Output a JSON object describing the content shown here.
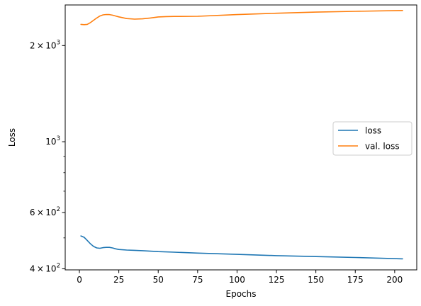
{
  "chart_data": {
    "type": "line",
    "title": "",
    "xlabel": "Epochs",
    "ylabel": "Loss",
    "xlim": [
      -9,
      214
    ],
    "ylim": [
      397,
      2680
    ],
    "yscale": "log",
    "grid": false,
    "legend_position": "center-right",
    "x_ticks": [
      0,
      25,
      50,
      75,
      100,
      125,
      150,
      175,
      200
    ],
    "y_major_ticks": [
      {
        "value": 400,
        "mantissa": "4",
        "exponent": "2"
      },
      {
        "value": 600,
        "mantissa": "6",
        "exponent": "2"
      },
      {
        "value": 1000,
        "mantissa": "",
        "exponent": "3"
      },
      {
        "value": 2000,
        "mantissa": "2",
        "exponent": "3"
      }
    ],
    "y_minor_ticks": [
      500,
      700,
      800,
      900
    ],
    "series": [
      {
        "name": "loss",
        "color": "#1f77b4",
        "x": [
          1,
          3,
          5,
          7,
          9,
          11,
          13,
          15,
          17,
          19,
          21,
          23,
          25,
          30,
          35,
          40,
          50,
          60,
          75,
          100,
          125,
          150,
          175,
          205
        ],
        "y": [
          507,
          502,
          491,
          479,
          470,
          465,
          464,
          466,
          467,
          467,
          465,
          462,
          460,
          458,
          457,
          456,
          453,
          451,
          448,
          444,
          440,
          437,
          434,
          430
        ]
      },
      {
        "name": "val. loss",
        "color": "#ff7f0e",
        "x": [
          1,
          3,
          5,
          7,
          9,
          11,
          13,
          15,
          17,
          19,
          21,
          23,
          25,
          30,
          35,
          40,
          45,
          50,
          55,
          60,
          75,
          100,
          125,
          150,
          175,
          205
        ],
        "y": [
          2330,
          2325,
          2330,
          2360,
          2400,
          2440,
          2475,
          2495,
          2502,
          2500,
          2490,
          2475,
          2460,
          2430,
          2420,
          2425,
          2440,
          2458,
          2465,
          2467,
          2470,
          2500,
          2525,
          2545,
          2560,
          2575
        ]
      }
    ]
  }
}
